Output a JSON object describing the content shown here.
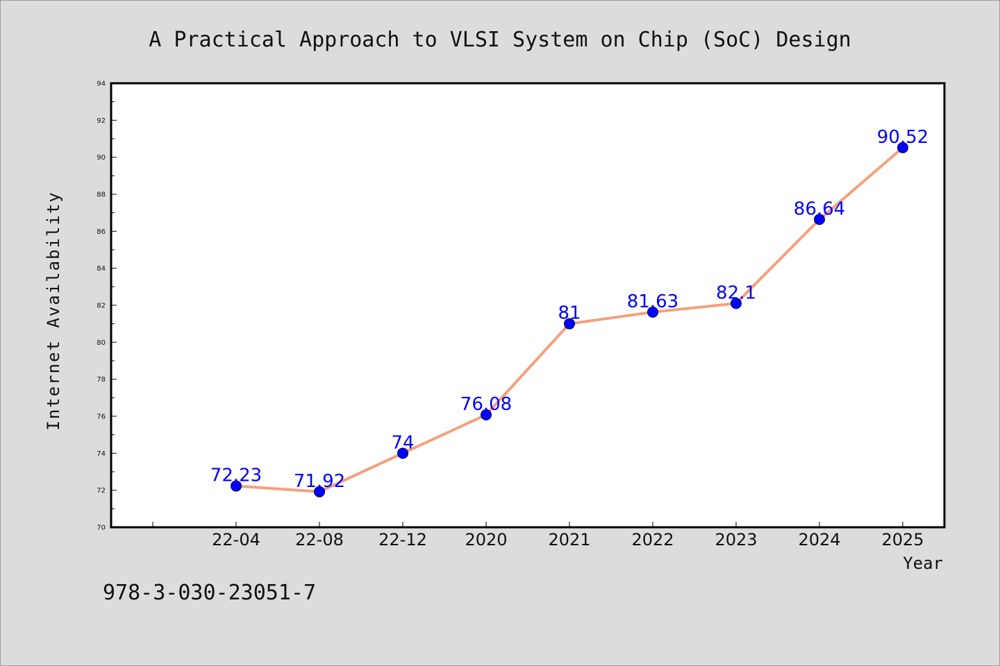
{
  "chart_data": {
    "type": "line",
    "title": "A Practical Approach to VLSI System on Chip (SoC) Design",
    "xlabel": "Year",
    "ylabel": "Internet Availability",
    "categories": [
      "22-04",
      "22-08",
      "22-12",
      "2020",
      "2021",
      "2022",
      "2023",
      "2024",
      "2025"
    ],
    "series": [
      {
        "values": [
          72.23,
          71.92,
          74,
          76.08,
          81,
          81.63,
          82.1,
          86.64,
          90.52
        ],
        "data_labels": [
          "72.23",
          "71.92",
          "74",
          "76.08",
          "81",
          "81.63",
          "82.1",
          "86.64",
          "90.52"
        ]
      }
    ],
    "ylim": [
      70,
      94
    ],
    "yticks": [
      "70",
      "72",
      "74",
      "76",
      "78",
      "80",
      "82",
      "84",
      "86",
      "88",
      "90",
      "92",
      "94"
    ],
    "grid": false,
    "line_color": "#f4a07c",
    "marker_color": "#0000ff",
    "label_color": "#0000ff"
  },
  "footer": {
    "isbn": "978-3-030-23051-7"
  }
}
